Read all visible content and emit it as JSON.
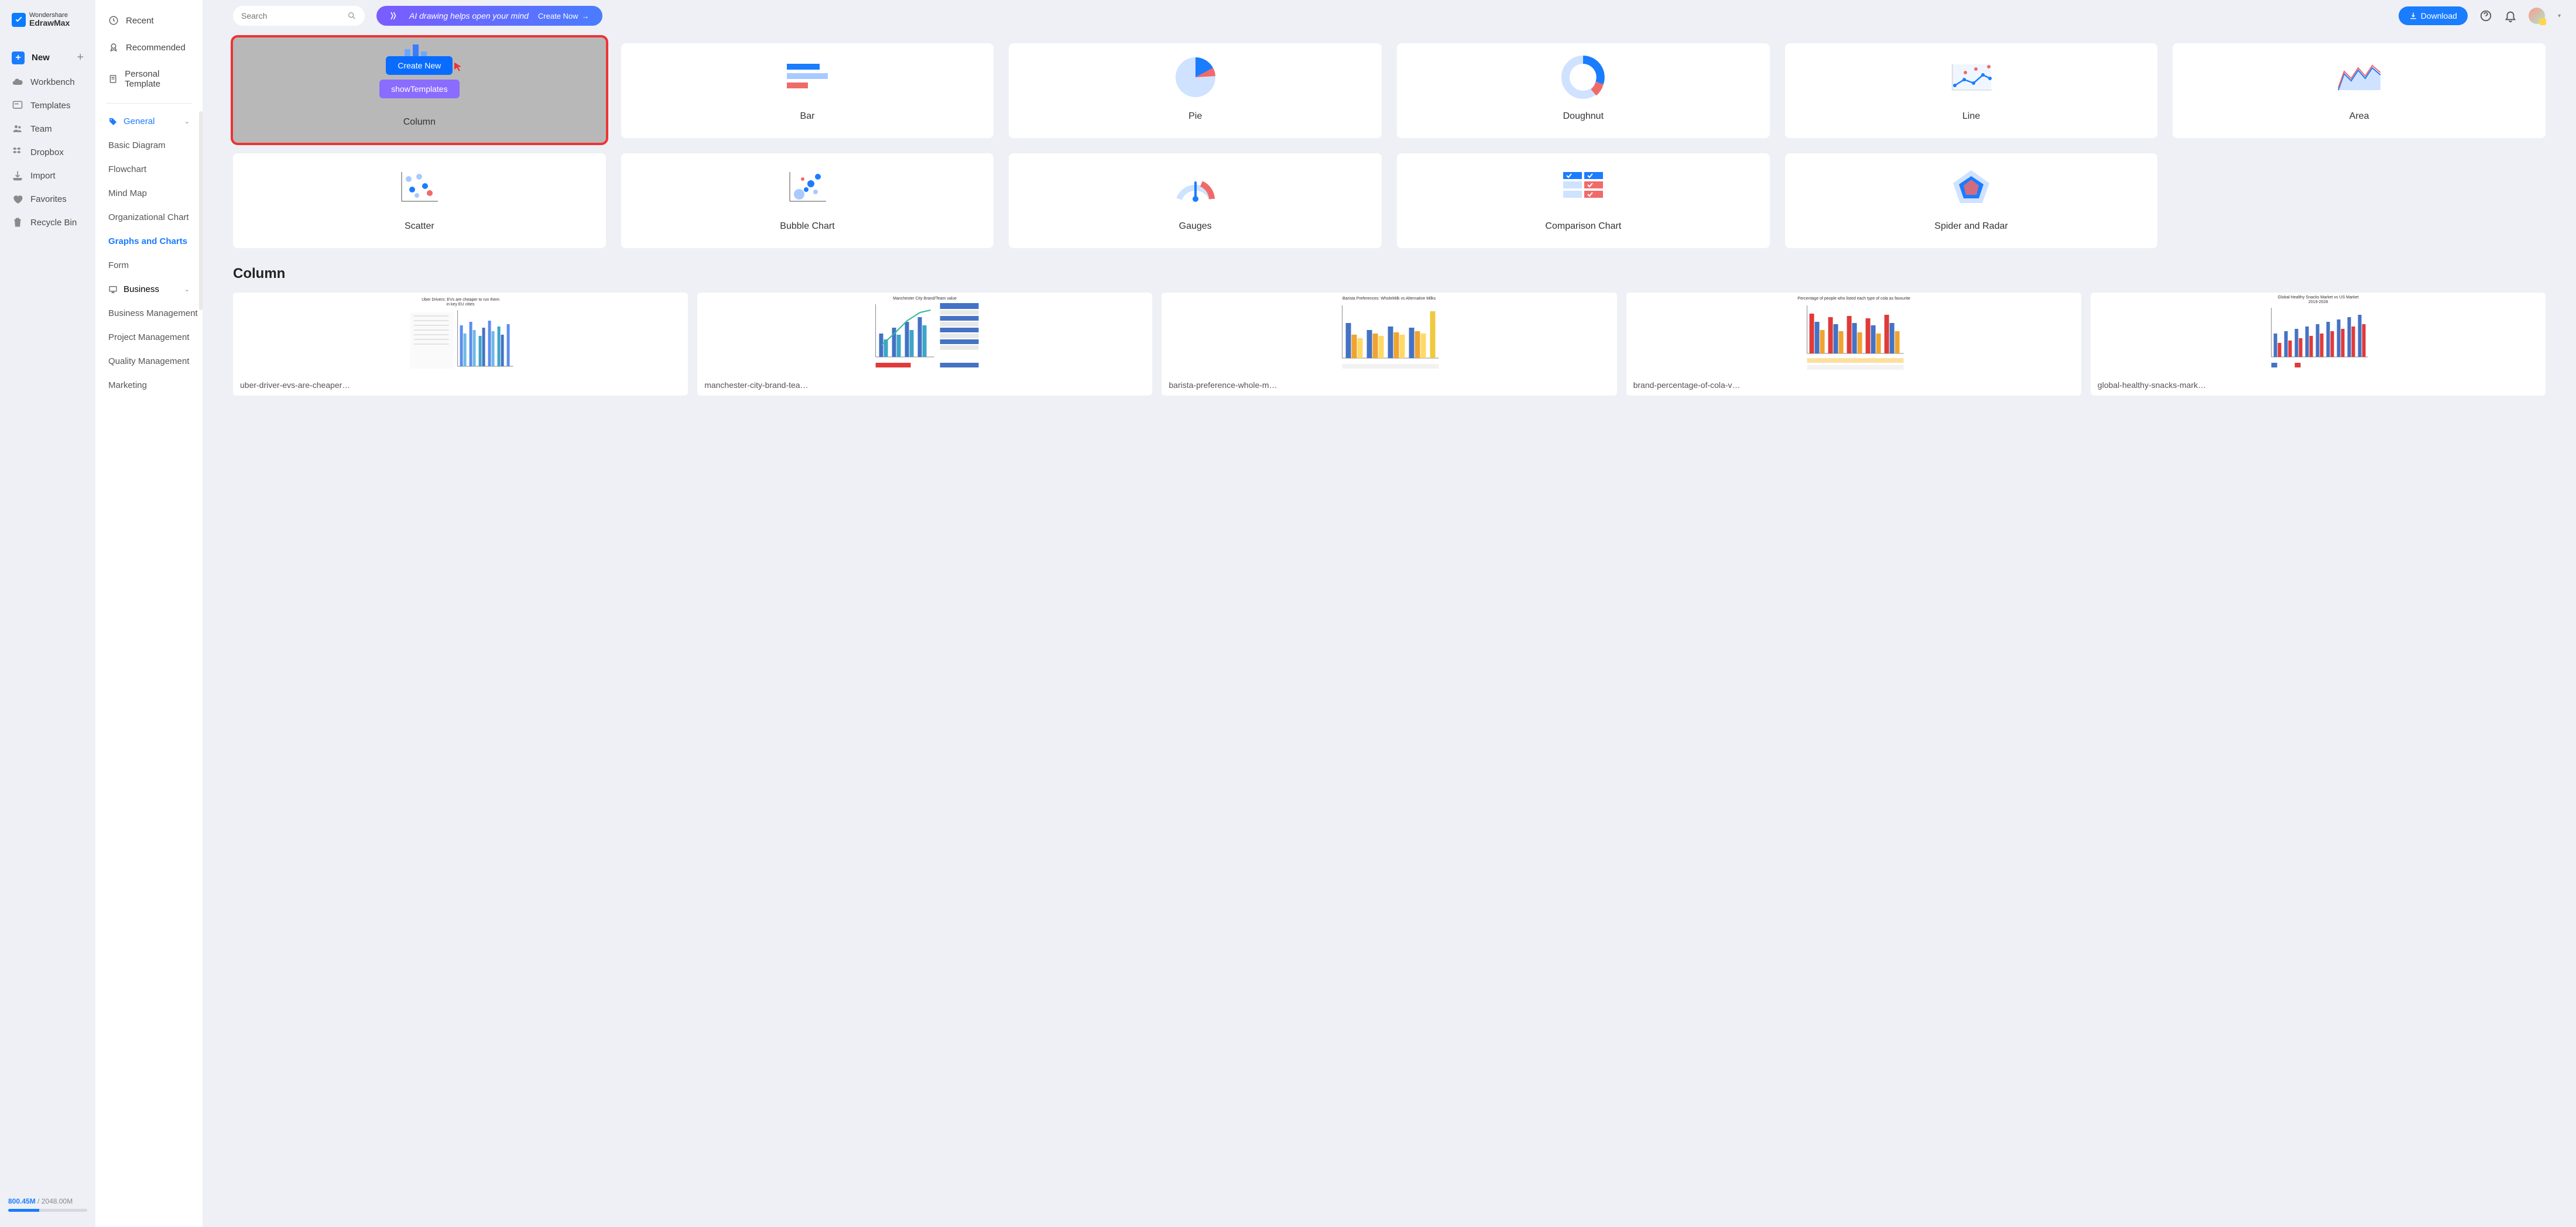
{
  "app": {
    "logo_small": "Wondershare",
    "logo_big": "EdrawMax"
  },
  "nav1": {
    "new": "New",
    "items": [
      {
        "label": "Workbench"
      },
      {
        "label": "Templates"
      },
      {
        "label": "Team"
      },
      {
        "label": "Dropbox"
      },
      {
        "label": "Import"
      },
      {
        "label": "Favorites"
      },
      {
        "label": "Recycle Bin"
      }
    ]
  },
  "storage": {
    "used": "800.45M",
    "total": "2048.00M",
    "percent": 39
  },
  "nav2": {
    "top": [
      "Recent",
      "Recommended",
      "Personal Template"
    ],
    "general": {
      "label": "General",
      "items": [
        "Basic Diagram",
        "Flowchart",
        "Mind Map",
        "Organizational Chart",
        "Graphs and Charts",
        "Form"
      ],
      "active": "Graphs and Charts"
    },
    "business": {
      "label": "Business",
      "items": [
        "Business Management",
        "Project Management",
        "Quality Management",
        "Marketing"
      ]
    }
  },
  "topbar": {
    "search_placeholder": "Search",
    "ai_text": "AI drawing helps open your mind",
    "ai_cta": "Create Now",
    "download": "Download"
  },
  "highlight_card": {
    "create_new": "Create New",
    "show_templates": "showTemplates",
    "label": "Column"
  },
  "chart_cards": [
    {
      "label": "Bar",
      "type": "bar"
    },
    {
      "label": "Pie",
      "type": "pie"
    },
    {
      "label": "Doughnut",
      "type": "doughnut"
    },
    {
      "label": "Line",
      "type": "line"
    },
    {
      "label": "Area",
      "type": "area"
    },
    {
      "label": "Scatter",
      "type": "scatter"
    },
    {
      "label": "Bubble Chart",
      "type": "bubble"
    },
    {
      "label": "Gauges",
      "type": "gauge"
    },
    {
      "label": "Comparison Chart",
      "type": "comparison"
    },
    {
      "label": "Spider and Radar",
      "type": "radar"
    }
  ],
  "section": {
    "title": "Column"
  },
  "templates": [
    {
      "name": "uber-driver-evs-are-cheaper…",
      "title": "Uber Drivers: EVs are cheaper to run themelands in key EU Cities"
    },
    {
      "name": "manchester-city-brand-tea…",
      "title": "Manchester City Brand/Team value"
    },
    {
      "name": "barista-preference-whole-m…",
      "title": "Barista Preferences: WholeMilk vs Alternative Milks"
    },
    {
      "name": "brand-percentage-of-cola-v…",
      "title": "Percentage of people who listed each type of cola as among their favourite."
    },
    {
      "name": "global-healthy-snacks-mark…",
      "title": "Global Healthy Snacks Market vs US Market 2019-2028"
    }
  ],
  "colors": {
    "primary": "#1a7cff",
    "accent_red": "#f06a6a",
    "light_blue": "#cfe2ff",
    "purple": "#8a6cff",
    "bg": "#eef0f5"
  },
  "chart_previews": {
    "bar": {
      "colors": [
        "#1a7cff",
        "#a8caff",
        "#f06a6a"
      ],
      "widths": [
        56,
        70,
        36
      ]
    },
    "pie": {
      "colors": [
        "#cfe2ff",
        "#1a7cff",
        "#f06a6a"
      ],
      "slices": [
        70,
        20,
        10
      ]
    },
    "doughnut": {
      "colors": [
        "#cfe2ff",
        "#1a7cff",
        "#f06a6a"
      ],
      "slices": [
        55,
        35,
        10
      ]
    },
    "line": {
      "color1": "#1a7cff",
      "color2": "#f06a6a",
      "fill": "#e8f2ff"
    },
    "area": {
      "fill": "#cfe2ff",
      "stroke_blue": "#1a7cff",
      "stroke_red": "#f06a6a"
    },
    "scatter": {
      "colors": {
        "b": "#1a7cff",
        "lb": "#a8caff",
        "r": "#f06a6a"
      }
    },
    "bubble": {
      "colors": {
        "b": "#1a7cff",
        "lb": "#a8caff",
        "r": "#f06a6a"
      }
    },
    "gauge": {
      "track": "#cfe2ff",
      "arc": "#f06a6a",
      "needle": "#1a7cff"
    },
    "comparison": {
      "header": "#1a7cff",
      "alt": "#cfe2ff",
      "check_red": "#f06a6a"
    },
    "radar": {
      "outer": "#cfe2ff",
      "inner": "#1a7cff",
      "overlay": "#f06a6a"
    }
  },
  "template_palettes": {
    "uber": [
      "#5b8def",
      "#6fb8e8",
      "#3da5c7",
      "#4472c4",
      "#5b8def"
    ],
    "manc": {
      "bars": [
        "#4472c4",
        "#3da5c7"
      ],
      "line": "#2fb8a0",
      "rows": [
        "#4472c4",
        "#d0d0d0"
      ]
    },
    "barista": [
      "#4472c4",
      "#f0a330",
      "#ffd966",
      "#4472c4",
      "#f0a330",
      "#ffd966",
      "#4472c4",
      "#f0a330",
      "#ffd966",
      "#eeca40"
    ],
    "brand": [
      "#e03a3a",
      "#4472c4",
      "#f0a330",
      "#e03a3a",
      "#4472c4",
      "#f0a330",
      "#e03a3a",
      "#4472c4",
      "#f0a330",
      "#e03a3a",
      "#4472c4",
      "#f0a330"
    ],
    "global": [
      "#4472c4",
      "#e03a3a"
    ]
  }
}
